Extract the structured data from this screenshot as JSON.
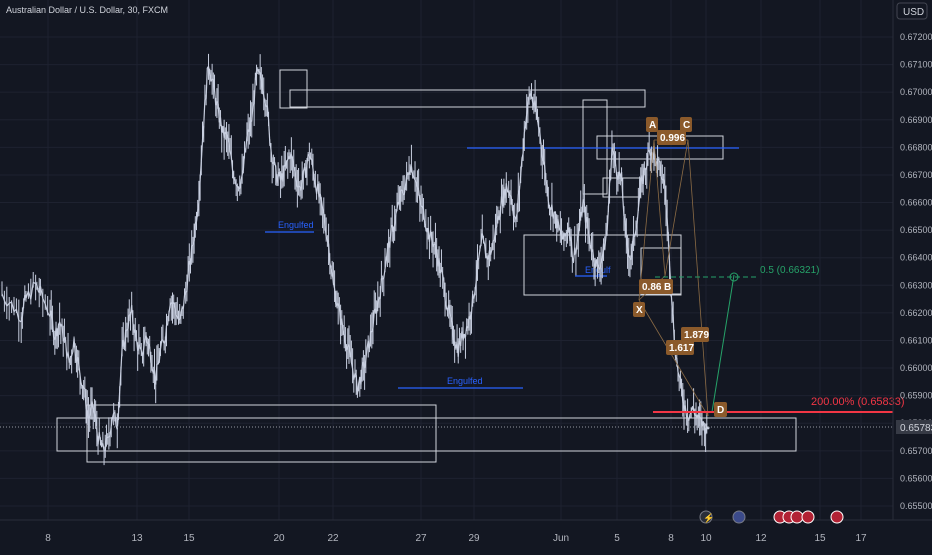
{
  "header": {
    "symbol_title": "Australian Dollar / U.S. Dollar, 30, FXCM",
    "currency_button": "USD"
  },
  "chart_data": {
    "type": "line",
    "title": "Australian Dollar / U.S. Dollar, 30, FXCM",
    "xlabel": "",
    "ylabel": "",
    "ylim": [
      0.6545,
      0.673
    ],
    "grid": true,
    "price_ticks": [
      "0.67200",
      "0.67100",
      "0.67000",
      "0.66900",
      "0.66800",
      "0.66700",
      "0.66600",
      "0.66500",
      "0.66400",
      "0.66300",
      "0.66200",
      "0.66100",
      "0.66000",
      "0.65900",
      "0.65800",
      "0.65700",
      "0.65600",
      "0.65500"
    ],
    "date_ticks": [
      "8",
      "13",
      "15",
      "20",
      "22",
      "27",
      "29",
      "Jun",
      "5",
      "8",
      "10",
      "12",
      "15",
      "17"
    ],
    "current_price": "0.65783",
    "series": [
      {
        "values": [
          [
            0,
            0.6627
          ],
          [
            2,
            0.6623
          ],
          [
            4,
            0.6619
          ],
          [
            5,
            0.6625
          ],
          [
            7,
            0.663
          ],
          [
            8,
            0.6627
          ],
          [
            10,
            0.662
          ],
          [
            11,
            0.6612
          ],
          [
            12,
            0.6617
          ],
          [
            13,
            0.661
          ],
          [
            14,
            0.6602
          ],
          [
            15,
            0.661
          ],
          [
            16,
            0.66
          ],
          [
            17,
            0.6593
          ],
          [
            18,
            0.6582
          ],
          [
            19,
            0.6586
          ],
          [
            20,
            0.6575
          ],
          [
            21,
            0.657
          ],
          [
            22,
            0.6573
          ],
          [
            23,
            0.6583
          ],
          [
            24,
            0.658
          ],
          [
            25,
            0.6605
          ],
          [
            26,
            0.6615
          ],
          [
            27,
            0.662
          ],
          [
            28,
            0.661
          ],
          [
            29,
            0.6604
          ],
          [
            30,
            0.6612
          ],
          [
            31,
            0.6605
          ],
          [
            32,
            0.6596
          ],
          [
            33,
            0.6606
          ],
          [
            34,
            0.6612
          ],
          [
            35,
            0.6625
          ],
          [
            36,
            0.6622
          ],
          [
            37,
            0.6616
          ],
          [
            38,
            0.6625
          ],
          [
            39,
            0.6636
          ],
          [
            40,
            0.6648
          ],
          [
            41,
            0.6663
          ],
          [
            42,
            0.669
          ],
          [
            43,
            0.6711
          ],
          [
            44,
            0.6702
          ],
          [
            45,
            0.6693
          ],
          [
            46,
            0.6685
          ],
          [
            47,
            0.6683
          ],
          [
            48,
            0.6672
          ],
          [
            49,
            0.6667
          ],
          [
            50,
            0.6668
          ],
          [
            51,
            0.6683
          ],
          [
            52,
            0.669
          ],
          [
            53,
            0.6706
          ],
          [
            54,
            0.6705
          ],
          [
            55,
            0.6697
          ],
          [
            56,
            0.668
          ],
          [
            57,
            0.667
          ],
          [
            58,
            0.6668
          ],
          [
            59,
            0.6672
          ],
          [
            60,
            0.6678
          ],
          [
            61,
            0.6671
          ],
          [
            62,
            0.6665
          ],
          [
            63,
            0.667
          ],
          [
            64,
            0.6678
          ],
          [
            65,
            0.667
          ],
          [
            66,
            0.6662
          ],
          [
            67,
            0.6655
          ],
          [
            68,
            0.6645
          ],
          [
            69,
            0.663
          ],
          [
            70,
            0.6622
          ],
          [
            71,
            0.6614
          ],
          [
            72,
            0.6608
          ],
          [
            73,
            0.66
          ],
          [
            74,
            0.6593
          ],
          [
            75,
            0.6598
          ],
          [
            76,
            0.6605
          ],
          [
            77,
            0.6614
          ],
          [
            78,
            0.6622
          ],
          [
            79,
            0.663
          ],
          [
            80,
            0.664
          ],
          [
            81,
            0.6648
          ],
          [
            82,
            0.6655
          ],
          [
            83,
            0.6662
          ],
          [
            84,
            0.6666
          ],
          [
            85,
            0.6674
          ],
          [
            86,
            0.667
          ],
          [
            87,
            0.666
          ],
          [
            88,
            0.6655
          ],
          [
            89,
            0.6648
          ],
          [
            90,
            0.6645
          ],
          [
            91,
            0.6638
          ],
          [
            92,
            0.663
          ],
          [
            93,
            0.662
          ],
          [
            94,
            0.6612
          ],
          [
            95,
            0.6607
          ],
          [
            96,
            0.6612
          ],
          [
            97,
            0.6616
          ],
          [
            98,
            0.6624
          ],
          [
            99,
            0.6636
          ],
          [
            100,
            0.6646
          ],
          [
            101,
            0.664
          ],
          [
            102,
            0.6643
          ],
          [
            103,
            0.6652
          ],
          [
            104,
            0.666
          ],
          [
            105,
            0.6666
          ],
          [
            106,
            0.6663
          ],
          [
            107,
            0.6652
          ],
          [
            108,
            0.667
          ],
          [
            109,
            0.669
          ],
          [
            110,
            0.67
          ],
          [
            111,
            0.6694
          ],
          [
            112,
            0.6685
          ],
          [
            113,
            0.6672
          ],
          [
            114,
            0.666
          ],
          [
            115,
            0.6656
          ],
          [
            116,
            0.665
          ],
          [
            117,
            0.6646
          ],
          [
            118,
            0.6652
          ],
          [
            119,
            0.664
          ],
          [
            120,
            0.6648
          ],
          [
            121,
            0.666
          ],
          [
            122,
            0.665
          ],
          [
            123,
            0.6642
          ],
          [
            124,
            0.6636
          ],
          [
            125,
            0.664
          ],
          [
            126,
            0.665
          ],
          [
            127,
            0.668
          ],
          [
            128,
            0.6672
          ],
          [
            129,
            0.6668
          ],
          [
            130,
            0.6645
          ],
          [
            131,
            0.664
          ],
          [
            132,
            0.6652
          ],
          [
            133,
            0.6665
          ],
          [
            134,
            0.6673
          ],
          [
            135,
            0.668
          ],
          [
            136,
            0.6676
          ],
          [
            137,
            0.6672
          ],
          [
            138,
            0.6666
          ],
          [
            139,
            0.664
          ],
          [
            140,
            0.661
          ],
          [
            141,
            0.6596
          ],
          [
            142,
            0.6587
          ],
          [
            143,
            0.6583
          ],
          [
            144,
            0.6585
          ],
          [
            145,
            0.6581
          ],
          [
            146,
            0.6579
          ],
          [
            147,
            0.65783
          ]
        ]
      }
    ],
    "annotations": {
      "engulfed_label": "Engulfed",
      "engulfed_short_label": "Engulf",
      "fib_ratio_ac": "0.996",
      "fib_ratio_xb": "0.862",
      "fib_ratio_bc1": "1.879",
      "fib_ratio_bc2": "1.617",
      "point_a": "A",
      "point_c": "C",
      "point_b": "B",
      "point_x": "X",
      "point_d": "D",
      "target_label": "0.5 (0.66321)",
      "extension_label": "200.00% (0.65833)"
    }
  },
  "colors": {
    "background": "#131722",
    "candle": "#c8cfe0",
    "grid": "#1e2230",
    "zone_border": "#d1d4dc",
    "blue_line": "#2962ff",
    "green_line": "#26a269",
    "red_line": "#f23645",
    "pattern_label": "#8b5a2b",
    "axis_text": "#b2b5be"
  },
  "timeline_icons": [
    "lightning-icon",
    "earth-icon",
    "flag-icon",
    "flag-icon",
    "flag-icon",
    "flag-icon",
    "flag-icon"
  ]
}
